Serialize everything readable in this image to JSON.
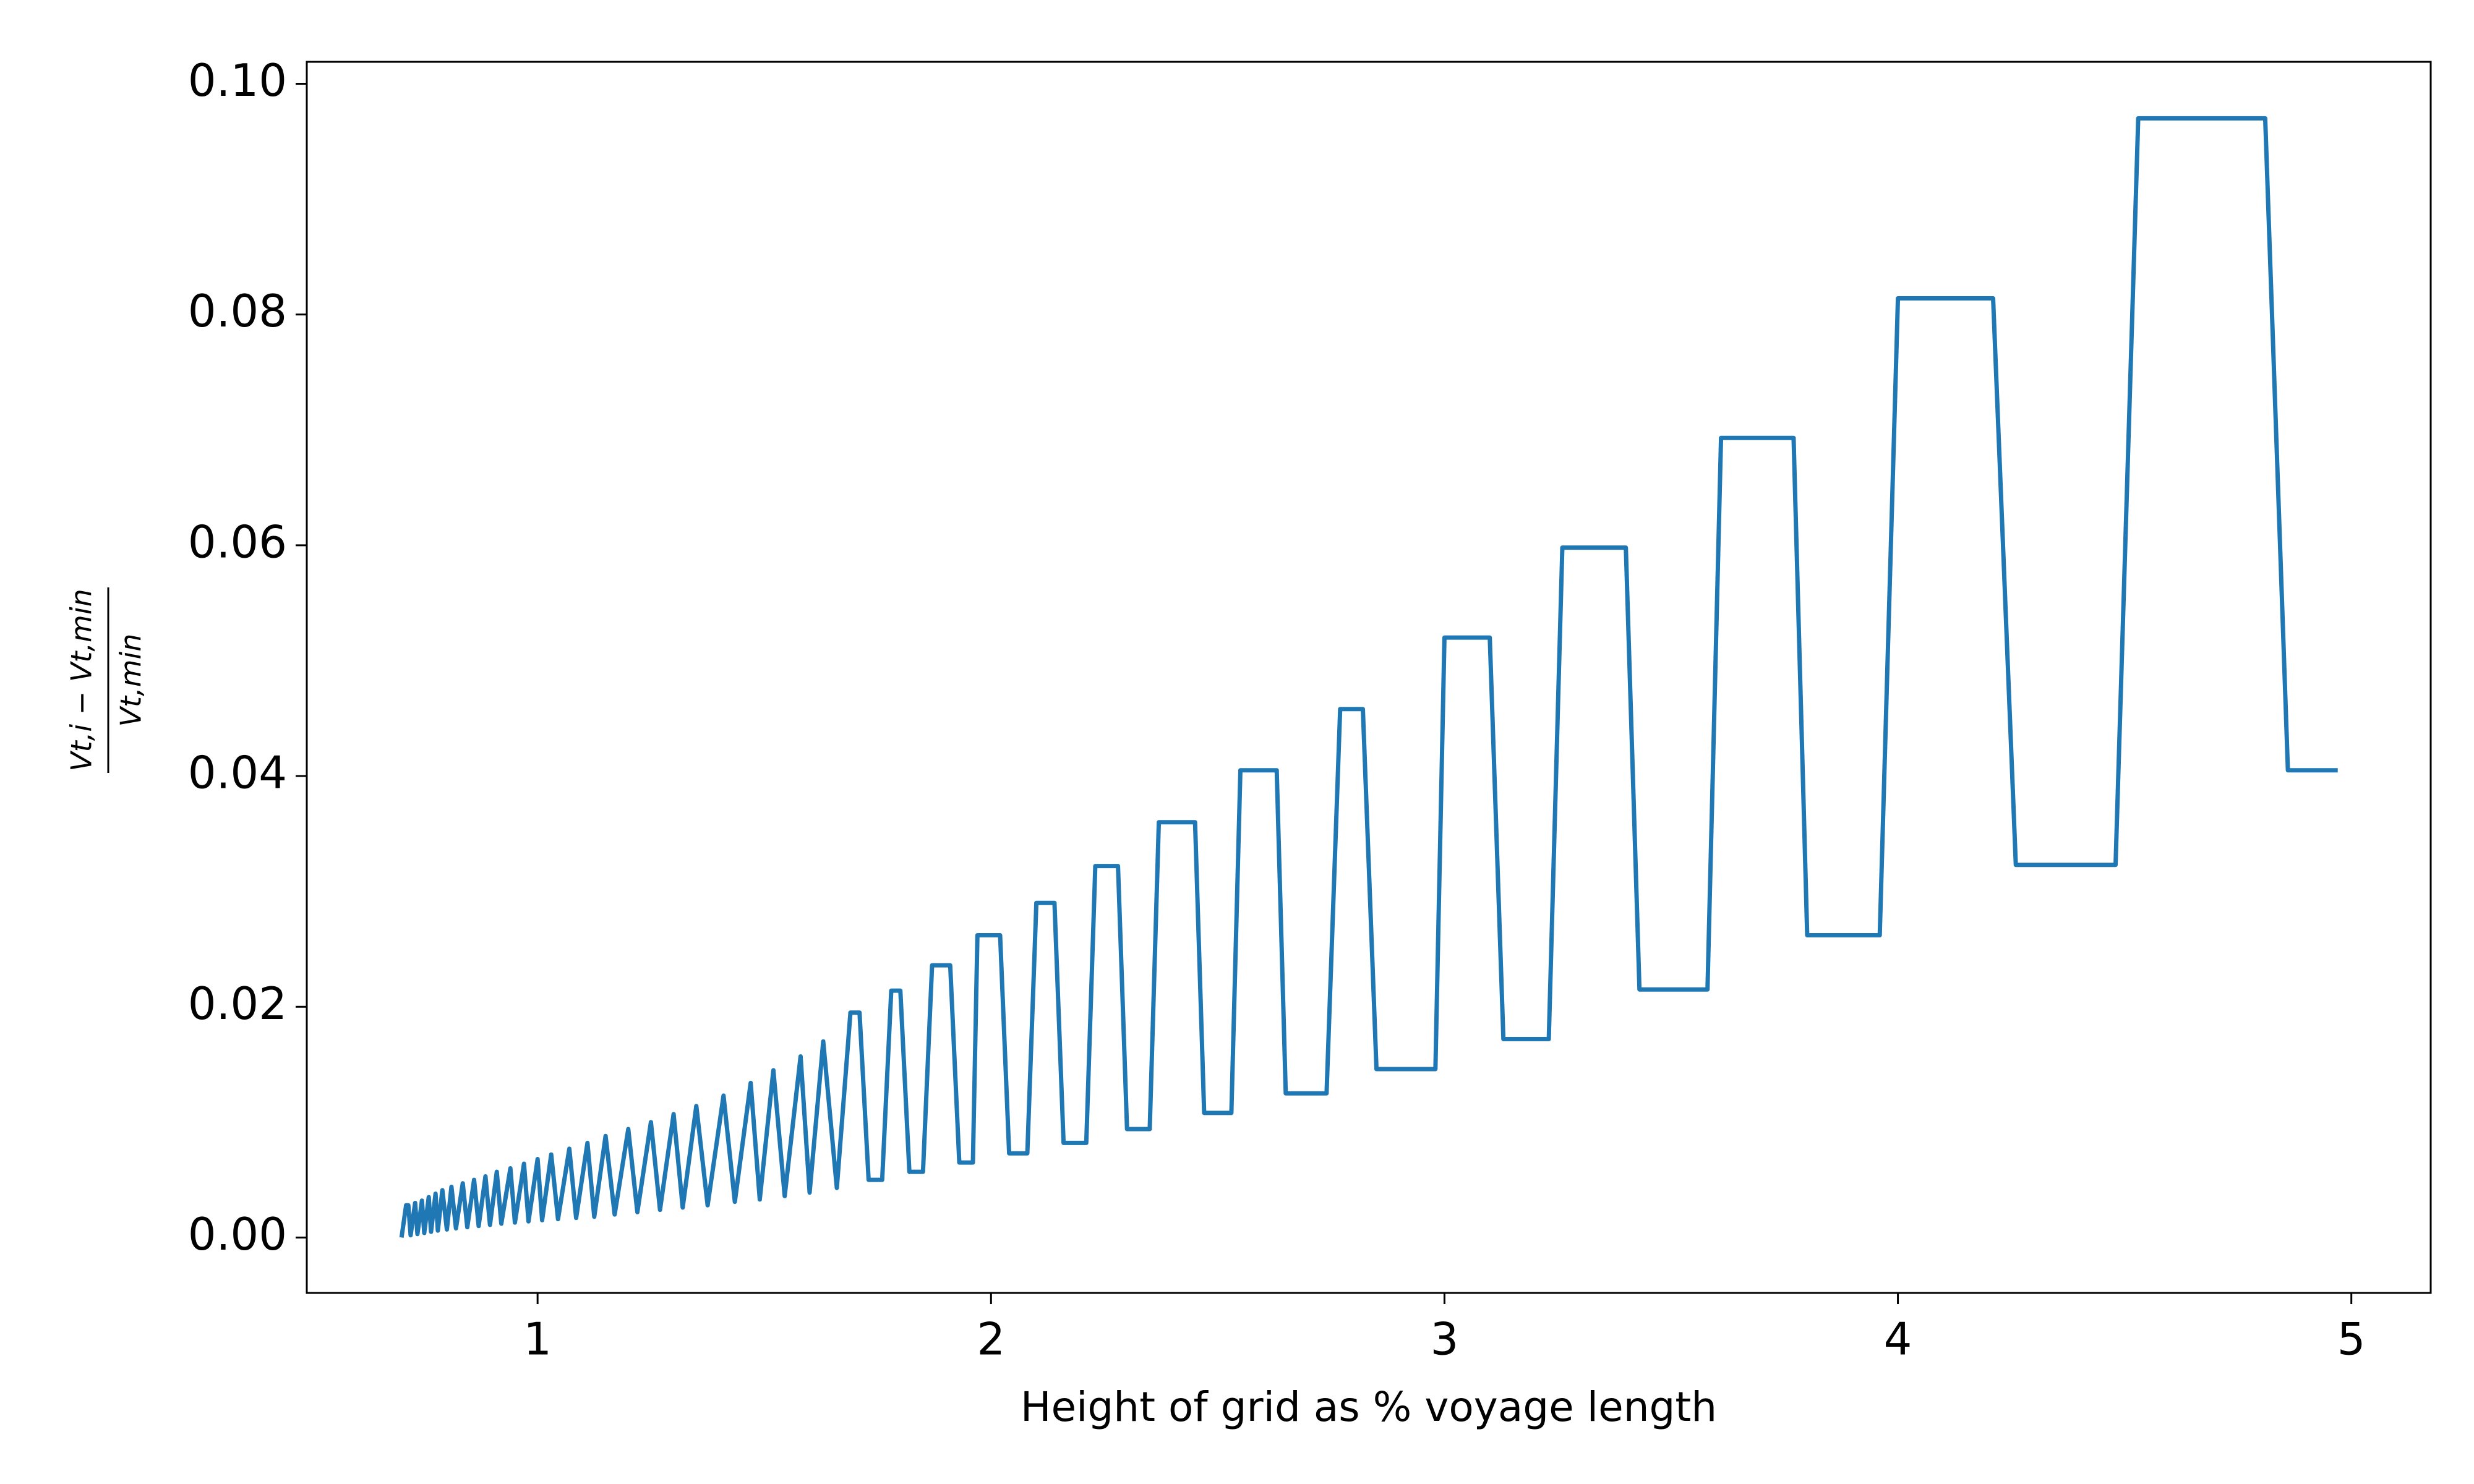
{
  "chart_data": {
    "type": "line",
    "xlabel": "Height of grid as % voyage length",
    "ylabel": {
      "numerator": "Vt,i − Vt,min",
      "denominator": "Vt,min"
    },
    "color": "#1f77b4",
    "x": [
      0.7,
      0.71,
      0.715,
      0.72,
      0.73,
      0.735,
      0.745,
      0.75,
      0.76,
      0.765,
      0.775,
      0.78,
      0.79,
      0.8,
      0.81,
      0.82,
      0.835,
      0.845,
      0.86,
      0.87,
      0.885,
      0.895,
      0.91,
      0.92,
      0.94,
      0.95,
      0.97,
      0.98,
      1.0,
      1.01,
      1.03,
      1.045,
      1.07,
      1.085,
      1.11,
      1.125,
      1.15,
      1.17,
      1.2,
      1.22,
      1.25,
      1.27,
      1.3,
      1.32,
      1.35,
      1.375,
      1.41,
      1.435,
      1.47,
      1.49,
      1.52,
      1.545,
      1.58,
      1.6,
      1.63,
      1.66,
      1.69,
      1.71,
      1.73,
      1.76,
      1.78,
      1.8,
      1.82,
      1.85,
      1.87,
      1.91,
      1.93,
      1.96,
      1.97,
      2.02,
      2.04,
      2.08,
      2.1,
      2.14,
      2.16,
      2.21,
      2.23,
      2.28,
      2.3,
      2.35,
      2.37,
      2.45,
      2.47,
      2.53,
      2.55,
      2.63,
      2.65,
      2.74,
      2.77,
      2.82,
      2.85,
      2.98,
      3.0,
      3.1,
      3.13,
      3.23,
      3.26,
      3.4,
      3.43,
      3.58,
      3.61,
      3.77,
      3.8,
      3.96,
      4.0,
      4.21,
      4.26,
      4.48,
      4.53,
      4.81,
      4.86,
      4.97
    ],
    "values": [
      0.0,
      0.0028,
      0.0028,
      0.0002,
      0.003,
      0.0003,
      0.0032,
      0.0004,
      0.0035,
      0.0005,
      0.0038,
      0.0006,
      0.0041,
      0.0007,
      0.0044,
      0.0008,
      0.0047,
      0.0009,
      0.005,
      0.001,
      0.0053,
      0.0011,
      0.0057,
      0.0012,
      0.006,
      0.0013,
      0.0064,
      0.0014,
      0.0068,
      0.0015,
      0.0072,
      0.0016,
      0.0077,
      0.0017,
      0.0082,
      0.0018,
      0.0088,
      0.002,
      0.0094,
      0.0022,
      0.01,
      0.0024,
      0.0107,
      0.0026,
      0.0114,
      0.0028,
      0.0123,
      0.0031,
      0.0134,
      0.0033,
      0.0145,
      0.0036,
      0.0157,
      0.0039,
      0.017,
      0.0043,
      0.0195,
      0.0195,
      0.005,
      0.005,
      0.0214,
      0.0214,
      0.0057,
      0.0057,
      0.0236,
      0.0236,
      0.0065,
      0.0065,
      0.0262,
      0.0262,
      0.0073,
      0.0073,
      0.029,
      0.029,
      0.0082,
      0.0082,
      0.0322,
      0.0322,
      0.0094,
      0.0094,
      0.036,
      0.036,
      0.0108,
      0.0108,
      0.0405,
      0.0405,
      0.0125,
      0.0125,
      0.0458,
      0.0458,
      0.0146,
      0.0146,
      0.052,
      0.052,
      0.0172,
      0.0172,
      0.0598,
      0.0598,
      0.0215,
      0.0215,
      0.0693,
      0.0693,
      0.0262,
      0.0262,
      0.0814,
      0.0814,
      0.0323,
      0.0323,
      0.097,
      0.097,
      0.0405,
      0.0405
    ],
    "xlim": [
      0.491,
      5.175
    ],
    "xticks": [
      1,
      2,
      3,
      4,
      5
    ],
    "ylim": [
      -0.0048,
      0.1019
    ],
    "yticks": [
      {
        "value": 0,
        "label": "0.00"
      },
      {
        "value": 0.02,
        "label": "0.02"
      },
      {
        "value": 0.04,
        "label": "0.04"
      },
      {
        "value": 0.06,
        "label": "0.06"
      },
      {
        "value": 0.08,
        "label": "0.08"
      },
      {
        "value": 0.1,
        "label": "0.10"
      }
    ]
  }
}
